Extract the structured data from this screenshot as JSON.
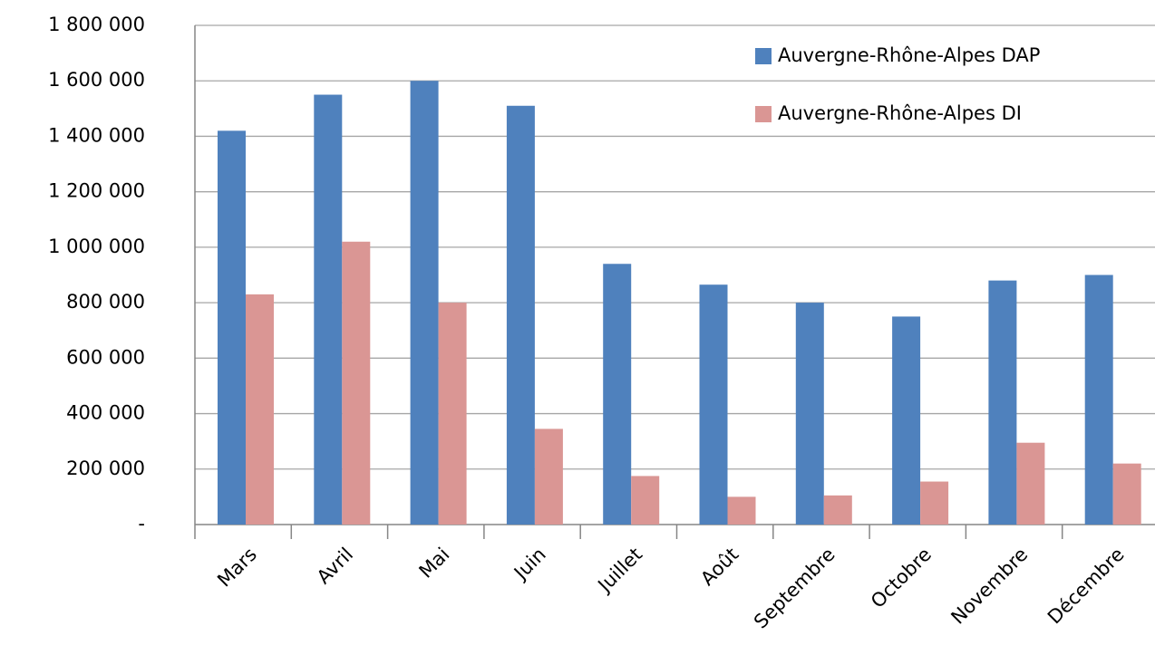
{
  "chart_data": {
    "type": "bar",
    "categories": [
      "Mars",
      "Avril",
      "Mai",
      "Juin",
      "Juillet",
      "Août",
      "Septembre",
      "Octobre",
      "Novembre",
      "Décembre"
    ],
    "series": [
      {
        "name": "Auvergne-Rhône-Alpes DAP",
        "color": "#4f81bd",
        "values": [
          1420000,
          1550000,
          1600000,
          1510000,
          940000,
          865000,
          800000,
          750000,
          880000,
          900000
        ]
      },
      {
        "name": "Auvergne-Rhône-Alpes DI",
        "color": "#da9694",
        "values": [
          830000,
          1020000,
          800000,
          345000,
          175000,
          100000,
          105000,
          155000,
          295000,
          220000
        ]
      }
    ],
    "ylim": [
      0,
      1800000
    ],
    "yticks": [
      {
        "value": 0,
        "label": "-"
      },
      {
        "value": 200000,
        "label": "200 000"
      },
      {
        "value": 400000,
        "label": "400 000"
      },
      {
        "value": 600000,
        "label": "600 000"
      },
      {
        "value": 800000,
        "label": "800 000"
      },
      {
        "value": 1000000,
        "label": "1 000 000"
      },
      {
        "value": 1200000,
        "label": "1 200 000"
      },
      {
        "value": 1400000,
        "label": "1 400 000"
      },
      {
        "value": 1600000,
        "label": "1 600 000"
      },
      {
        "value": 1800000,
        "label": "1 800 000"
      }
    ],
    "grid": true,
    "legend": "top-right"
  }
}
